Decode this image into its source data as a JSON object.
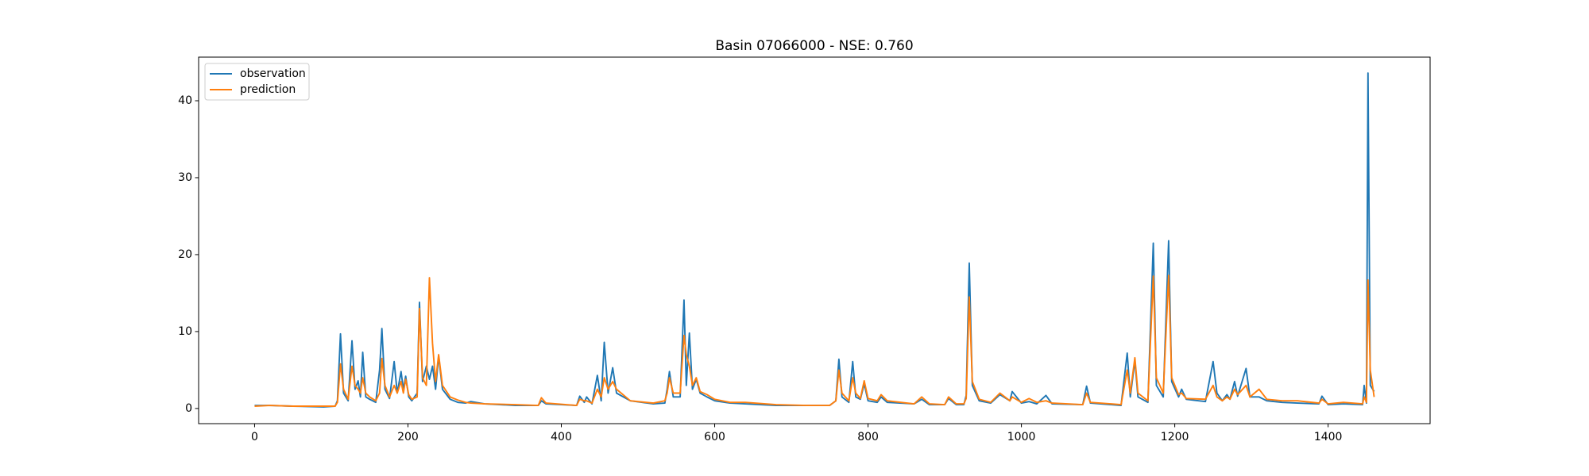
{
  "chart_data": {
    "type": "line",
    "title": "Basin 07066000 - NSE: 0.760",
    "x": [
      0,
      20,
      50,
      90,
      105,
      108,
      112,
      116,
      122,
      127,
      131,
      135,
      138,
      141,
      145,
      150,
      158,
      163,
      166,
      170,
      176,
      182,
      186,
      191,
      194,
      197,
      201,
      205,
      212,
      215,
      219,
      224,
      228,
      232,
      236,
      240,
      245,
      255,
      265,
      275,
      282,
      300,
      340,
      370,
      374,
      380,
      420,
      424,
      430,
      433,
      440,
      447,
      452,
      456,
      461,
      467,
      472,
      490,
      520,
      535,
      538,
      541,
      546,
      555,
      560,
      563,
      567,
      571,
      576,
      581,
      590,
      600,
      620,
      640,
      680,
      720,
      750,
      758,
      762,
      766,
      775,
      780,
      784,
      790,
      795,
      800,
      812,
      817,
      825,
      860,
      870,
      880,
      900,
      905,
      915,
      925,
      928,
      932,
      936,
      945,
      960,
      972,
      985,
      988,
      1000,
      1010,
      1020,
      1032,
      1040,
      1080,
      1085,
      1090,
      1130,
      1138,
      1142,
      1148,
      1152,
      1165,
      1172,
      1176,
      1185,
      1192,
      1196,
      1205,
      1209,
      1215,
      1240,
      1250,
      1255,
      1262,
      1268,
      1272,
      1278,
      1282,
      1293,
      1298,
      1310,
      1320,
      1340,
      1360,
      1388,
      1392,
      1400,
      1420,
      1445,
      1447,
      1450,
      1452,
      1455,
      1460
    ],
    "series": [
      {
        "name": "observation",
        "color": "#1f77b4",
        "values": [
          0.4,
          0.4,
          0.3,
          0.2,
          0.3,
          1.0,
          9.7,
          2.0,
          1.0,
          8.8,
          2.5,
          3.6,
          1.5,
          7.3,
          1.5,
          1.2,
          0.8,
          5.0,
          10.4,
          2.5,
          1.3,
          6.1,
          2.0,
          4.8,
          2.5,
          4.2,
          1.5,
          1.0,
          2.0,
          13.8,
          3.5,
          5.5,
          3.8,
          5.5,
          2.5,
          6.8,
          2.5,
          1.2,
          0.8,
          0.7,
          0.9,
          0.6,
          0.4,
          0.4,
          1.0,
          0.6,
          0.4,
          1.6,
          0.8,
          1.5,
          0.6,
          4.3,
          1.0,
          8.6,
          2.0,
          5.3,
          2.0,
          1.0,
          0.6,
          0.7,
          2.5,
          4.8,
          1.5,
          1.5,
          14.1,
          3.0,
          9.8,
          2.5,
          3.8,
          2.0,
          1.5,
          1.0,
          0.7,
          0.6,
          0.4,
          0.4,
          0.4,
          1.0,
          6.4,
          1.5,
          0.8,
          6.1,
          1.5,
          1.2,
          3.2,
          1.0,
          0.8,
          1.5,
          0.8,
          0.6,
          1.2,
          0.5,
          0.5,
          1.3,
          0.5,
          0.5,
          1.7,
          18.9,
          3.0,
          1.0,
          0.7,
          1.8,
          1.0,
          2.2,
          0.7,
          0.9,
          0.6,
          1.7,
          0.6,
          0.5,
          2.9,
          0.7,
          0.4,
          7.2,
          1.5,
          6.2,
          1.5,
          0.8,
          21.5,
          3.0,
          1.5,
          21.8,
          3.5,
          1.5,
          2.5,
          1.2,
          0.9,
          6.1,
          2.0,
          1.0,
          1.8,
          1.2,
          3.5,
          1.6,
          5.2,
          1.5,
          1.5,
          1.0,
          0.8,
          0.7,
          0.6,
          1.6,
          0.5,
          0.6,
          0.5,
          3.0,
          0.7,
          43.6,
          3.0,
          2.2
        ]
      },
      {
        "name": "prediction",
        "color": "#ff7f0e",
        "values": [
          0.3,
          0.4,
          0.3,
          0.3,
          0.3,
          0.8,
          5.8,
          2.5,
          1.2,
          5.5,
          3.0,
          2.5,
          2.0,
          4.0,
          2.0,
          1.5,
          1.0,
          2.0,
          6.5,
          3.0,
          1.5,
          3.0,
          2.0,
          3.5,
          2.0,
          3.8,
          1.8,
          1.2,
          1.5,
          13.0,
          4.0,
          3.0,
          17.0,
          8.5,
          3.5,
          7.0,
          3.0,
          1.5,
          1.1,
          0.8,
          0.7,
          0.6,
          0.5,
          0.4,
          1.4,
          0.7,
          0.4,
          1.2,
          1.0,
          1.0,
          0.7,
          2.5,
          1.5,
          4.0,
          2.5,
          3.5,
          2.5,
          1.0,
          0.7,
          1.0,
          2.0,
          4.0,
          2.0,
          2.0,
          9.5,
          7.0,
          5.5,
          3.0,
          4.0,
          2.2,
          1.8,
          1.2,
          0.8,
          0.8,
          0.5,
          0.4,
          0.4,
          1.0,
          5.0,
          2.0,
          1.0,
          4.0,
          2.0,
          1.3,
          3.6,
          1.3,
          1.0,
          1.8,
          1.0,
          0.6,
          1.5,
          0.6,
          0.5,
          1.5,
          0.6,
          0.6,
          1.3,
          14.5,
          3.5,
          1.2,
          0.8,
          2.0,
          1.0,
          1.5,
          0.8,
          1.3,
          0.8,
          1.0,
          0.7,
          0.5,
          2.0,
          0.8,
          0.5,
          5.0,
          2.0,
          6.6,
          2.0,
          1.0,
          17.2,
          4.0,
          2.0,
          17.3,
          4.0,
          1.8,
          2.0,
          1.3,
          1.2,
          3.0,
          1.5,
          1.0,
          1.5,
          1.2,
          2.5,
          1.8,
          3.0,
          1.5,
          2.5,
          1.2,
          1.0,
          1.0,
          0.7,
          1.2,
          0.6,
          0.8,
          0.6,
          1.5,
          0.8,
          16.7,
          5.0,
          1.5
        ]
      }
    ],
    "xlim": [
      -73,
      1533
    ],
    "xticks": [
      0,
      200,
      400,
      600,
      800,
      1000,
      1200,
      1400
    ],
    "ylim": [
      -1.97,
      45.67
    ],
    "yticks": [
      0,
      10,
      20,
      30,
      40
    ],
    "grid": false,
    "legend": "upper-left"
  }
}
